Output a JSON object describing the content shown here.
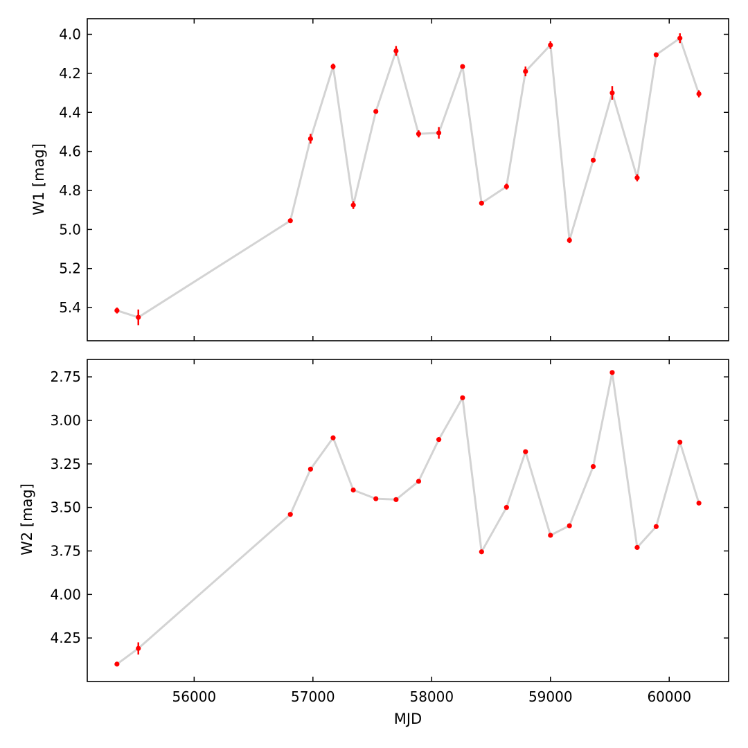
{
  "chart_data": [
    {
      "type": "scatter",
      "xlabel": "MJD",
      "ylabel": "W1 [mag]",
      "y_inverted": true,
      "xlim": [
        55100,
        60500
      ],
      "ylim": [
        5.57,
        3.92
      ],
      "xticks": [
        56000,
        57000,
        58000,
        59000,
        60000
      ],
      "yticks": [
        4.0,
        4.2,
        4.4,
        4.6,
        4.8,
        5.0,
        5.2,
        5.4
      ],
      "ytick_labels": [
        "4.0",
        "4.2",
        "4.4",
        "4.6",
        "4.8",
        "5.0",
        "5.2",
        "5.4"
      ],
      "show_xtick_labels": false,
      "grid": false,
      "line_color": "#d3d3d3",
      "marker_color": "#ff0000",
      "series": [
        {
          "x": [
            55350,
            55530,
            56810,
            56980,
            57170,
            57340,
            57530,
            57700,
            57890,
            58060,
            58260,
            58420,
            58630,
            58790,
            59000,
            59160,
            59360,
            59520,
            59730,
            59890,
            60090,
            60250
          ],
          "y": [
            5.415,
            5.45,
            4.955,
            4.535,
            4.165,
            4.875,
            4.395,
            4.085,
            4.51,
            4.505,
            4.165,
            4.865,
            4.78,
            4.19,
            4.055,
            5.055,
            4.645,
            4.3,
            4.735,
            4.105,
            4.02,
            4.305
          ],
          "yerr": [
            0.015,
            0.04,
            0.01,
            0.025,
            0.015,
            0.02,
            0.012,
            0.025,
            0.018,
            0.03,
            0.012,
            0.01,
            0.015,
            0.025,
            0.02,
            0.015,
            0.01,
            0.035,
            0.018,
            0.01,
            0.025,
            0.018
          ]
        }
      ]
    },
    {
      "type": "scatter",
      "xlabel": "MJD",
      "ylabel": "W2 [mag]",
      "y_inverted": true,
      "xlim": [
        55100,
        60500
      ],
      "ylim": [
        4.5,
        2.65
      ],
      "xticks": [
        56000,
        57000,
        58000,
        59000,
        60000
      ],
      "xtick_labels": [
        "56000",
        "57000",
        "58000",
        "59000",
        "60000"
      ],
      "yticks": [
        2.75,
        3.0,
        3.25,
        3.5,
        3.75,
        4.0,
        4.25
      ],
      "ytick_labels": [
        "2.75",
        "3.00",
        "3.25",
        "3.50",
        "3.75",
        "4.00",
        "4.25"
      ],
      "show_xtick_labels": true,
      "grid": false,
      "line_color": "#d3d3d3",
      "marker_color": "#ff0000",
      "series": [
        {
          "x": [
            55350,
            55530,
            56810,
            56980,
            57170,
            57340,
            57530,
            57700,
            57890,
            58060,
            58260,
            58420,
            58630,
            58790,
            59000,
            59160,
            59360,
            59520,
            59730,
            59890,
            60090,
            60250
          ],
          "y": [
            4.4,
            4.31,
            3.54,
            3.28,
            3.1,
            3.4,
            3.45,
            3.455,
            3.35,
            3.11,
            2.87,
            3.755,
            3.5,
            3.18,
            3.66,
            3.605,
            3.265,
            2.725,
            3.73,
            3.61,
            3.125,
            3.475
          ],
          "yerr": [
            0.01,
            0.035,
            0.01,
            0.01,
            0.01,
            0.01,
            0.01,
            0.01,
            0.01,
            0.01,
            0.01,
            0.01,
            0.01,
            0.01,
            0.01,
            0.01,
            0.01,
            0.01,
            0.01,
            0.01,
            0.01,
            0.01
          ]
        }
      ]
    }
  ]
}
